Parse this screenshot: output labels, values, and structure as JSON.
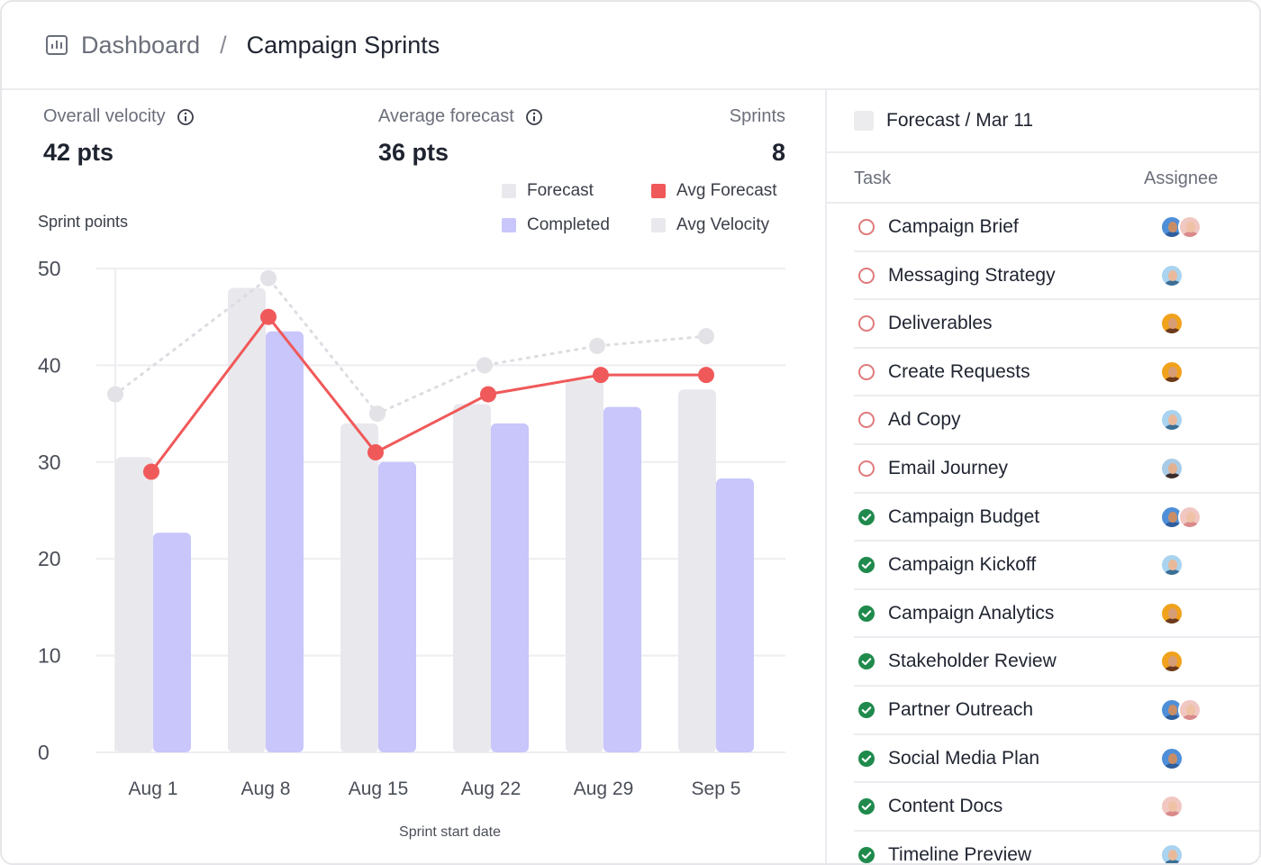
{
  "breadcrumb": {
    "root": "Dashboard",
    "separator": "/",
    "current": "Campaign Sprints"
  },
  "stats": {
    "velocity": {
      "label": "Overall velocity",
      "value": "42 pts"
    },
    "forecast": {
      "label": "Average forecast",
      "value": "36 pts"
    },
    "sprints": {
      "label": "Sprints",
      "value": "8"
    }
  },
  "legend": {
    "forecast": "Forecast",
    "completed": "Completed",
    "avg_forecast": "Avg Forecast",
    "avg_velocity": "Avg Velocity"
  },
  "colors": {
    "forecast": "#e9e8ed",
    "completed": "#c8c6fb",
    "avg_forecast": "#f0595a",
    "avg_velocity": "#e4e4e8",
    "done": "#1f8a4c",
    "open": "#e07a7a"
  },
  "chart_data": {
    "type": "bar",
    "title": "Sprint points",
    "xlabel": "Sprint start date",
    "ylabel": "",
    "ylim": [
      0,
      50
    ],
    "yticks": [
      0,
      10,
      20,
      30,
      40,
      50
    ],
    "categories": [
      "Aug 1",
      "Aug 8",
      "Aug 15",
      "Aug 22",
      "Aug 29",
      "Sep 5"
    ],
    "series": [
      {
        "name": "Forecast",
        "kind": "bar",
        "values": [
          30.5,
          48,
          34,
          36,
          38.5,
          37.5
        ]
      },
      {
        "name": "Completed",
        "kind": "bar",
        "values": [
          22.7,
          43.5,
          30,
          34,
          35.7,
          28.3
        ]
      },
      {
        "name": "Avg Forecast",
        "kind": "line",
        "values": [
          29,
          45,
          31,
          37,
          39,
          39
        ]
      },
      {
        "name": "Avg Velocity",
        "kind": "dotted-line",
        "values": [
          37,
          49,
          35,
          40,
          42,
          43
        ]
      }
    ],
    "grid": true,
    "legend": "top-right"
  },
  "panel": {
    "title": "Forecast / Mar 11",
    "col_task": "Task",
    "col_assignee": "Assignee",
    "tasks": [
      {
        "name": "Campaign Brief",
        "done": false,
        "avatars": [
          "a1",
          "a2"
        ]
      },
      {
        "name": "Messaging Strategy",
        "done": false,
        "avatars": [
          "a3"
        ]
      },
      {
        "name": "Deliverables",
        "done": false,
        "avatars": [
          "a4"
        ]
      },
      {
        "name": "Create Requests",
        "done": false,
        "avatars": [
          "a4"
        ]
      },
      {
        "name": "Ad Copy",
        "done": false,
        "avatars": [
          "a3"
        ]
      },
      {
        "name": "Email Journey",
        "done": false,
        "avatars": [
          "a5"
        ]
      },
      {
        "name": "Campaign Budget",
        "done": true,
        "avatars": [
          "a1",
          "a2"
        ]
      },
      {
        "name": "Campaign Kickoff",
        "done": true,
        "avatars": [
          "a3"
        ]
      },
      {
        "name": "Campaign Analytics",
        "done": true,
        "avatars": [
          "a4"
        ]
      },
      {
        "name": "Stakeholder Review",
        "done": true,
        "avatars": [
          "a4"
        ]
      },
      {
        "name": "Partner Outreach",
        "done": true,
        "avatars": [
          "a1",
          "a2"
        ]
      },
      {
        "name": "Social Media Plan",
        "done": true,
        "avatars": [
          "a1"
        ]
      },
      {
        "name": "Content Docs",
        "done": true,
        "avatars": [
          "a2"
        ]
      },
      {
        "name": "Timeline Preview",
        "done": true,
        "avatars": [
          "a3"
        ]
      }
    ]
  }
}
